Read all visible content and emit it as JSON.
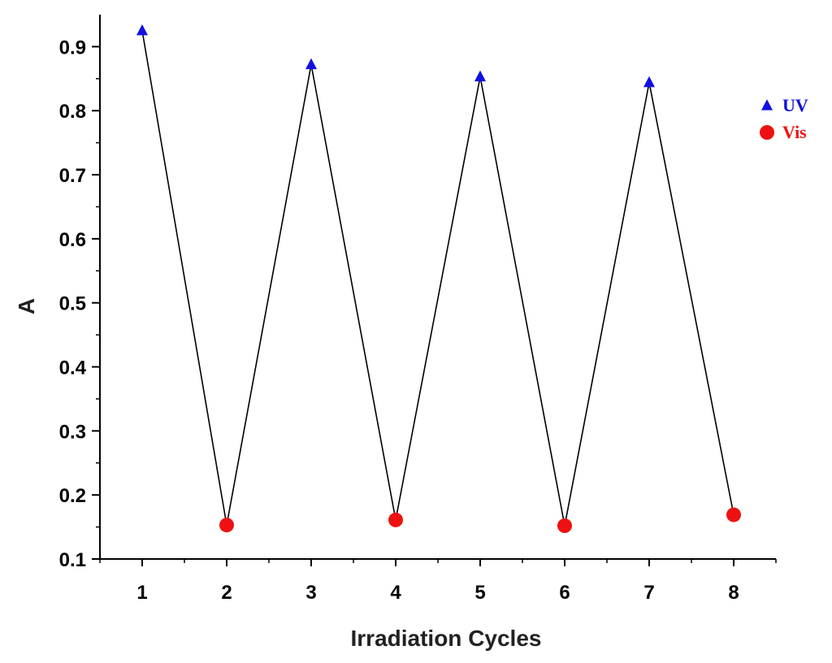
{
  "chart_data": {
    "type": "line",
    "title": "",
    "xlabel": "Irradiation Cycles",
    "ylabel": "A",
    "xlim": [
      0.5,
      8.5
    ],
    "ylim": [
      0.1,
      0.95
    ],
    "x_ticks": [
      1,
      2,
      3,
      4,
      5,
      6,
      7,
      8
    ],
    "x_tick_labels": [
      "1",
      "2",
      "3",
      "4",
      "5",
      "6",
      "7",
      "8"
    ],
    "y_ticks": [
      0.1,
      0.2,
      0.3,
      0.4,
      0.5,
      0.6,
      0.7,
      0.8,
      0.9
    ],
    "y_tick_labels": [
      "0.1",
      "0.2",
      "0.3",
      "0.4",
      "0.5",
      "0.6",
      "0.7",
      "0.8",
      "0.9"
    ],
    "grid": false,
    "connecting_line": {
      "x": [
        1,
        2,
        3,
        4,
        5,
        6,
        7,
        8
      ],
      "y": [
        0.925,
        0.153,
        0.872,
        0.161,
        0.853,
        0.152,
        0.844,
        0.169
      ],
      "color": "#000000"
    },
    "series": [
      {
        "name": "UV",
        "marker": "triangle",
        "color": "#1010e0",
        "x": [
          1,
          3,
          5,
          7
        ],
        "y": [
          0.925,
          0.872,
          0.853,
          0.844
        ]
      },
      {
        "name": "Vis",
        "marker": "circle",
        "color": "#ee1111",
        "x": [
          2,
          4,
          6,
          8
        ],
        "y": [
          0.153,
          0.161,
          0.152,
          0.169
        ]
      }
    ],
    "legend": {
      "position": "right",
      "entries": [
        "UV",
        "Vis"
      ]
    }
  }
}
